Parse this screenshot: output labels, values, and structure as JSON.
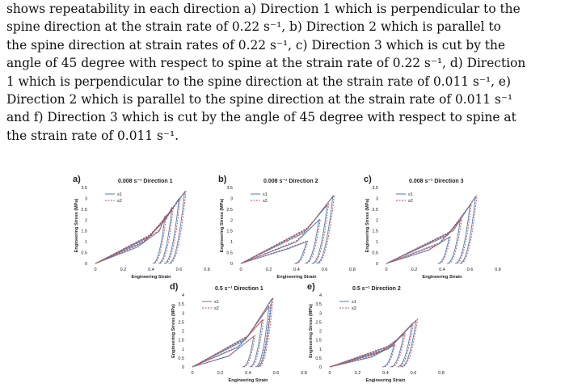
{
  "caption": {
    "lines": [
      "shows repeatability in each direction a) Direction 1 which is perpendicular to the",
      "spine direction at the strain rate of 0.22 s⁻¹, b) Direction 2 which is parallel to",
      "the spine direction at strain rates of 0.22 s⁻¹, c) Direction 3 which is cut by the",
      "angle of 45 degree with respect to spine at the strain rate of 0.22 s⁻¹, d) Direction",
      "1 which is perpendicular to the spine direction at the strain rate of 0.011 s⁻¹, e)",
      "Direction 2 which is parallel to the spine direction at the strain rate of 0.011 s⁻¹",
      "and f) Direction 3 which is cut by the angle of 45 degree with respect to spine at",
      "the strain rate of 0.011 s⁻¹."
    ]
  },
  "colors": {
    "s1": "#4a7ebb",
    "s2": "#c0504d"
  },
  "chart_data": [
    {
      "type": "line",
      "panel_label": "a)",
      "title": "0.008 s⁻¹ Direction 1",
      "xlabel": "Engineering Strain",
      "ylabel": "Engineering Stress (MPa)",
      "xticks": [
        "0",
        "0.2",
        "0.4",
        "0.6",
        "0.8"
      ],
      "yticks": [
        "0",
        "0.5",
        "1",
        "1.5",
        "2",
        "2.5",
        "3",
        "3.5"
      ],
      "xlim": [
        0,
        0.8
      ],
      "ylim": [
        0,
        3.5
      ],
      "series": [
        {
          "name": "s1",
          "style": "solid",
          "cycles": [
            {
              "x": [
                0,
                0.3,
                0.46,
                0.5
              ],
              "y": [
                0,
                0.75,
                1.5,
                2.2
              ]
            },
            {
              "x": [
                0,
                0.35,
                0.5,
                0.55
              ],
              "y": [
                0,
                1.0,
                2.0,
                2.6
              ]
            },
            {
              "x": [
                0,
                0.38,
                0.53,
                0.6
              ],
              "y": [
                0,
                1.2,
                2.3,
                3.0
              ]
            },
            {
              "x": [
                0,
                0.4,
                0.56,
                0.64
              ],
              "y": [
                0,
                1.3,
                2.6,
                3.3
              ]
            }
          ]
        },
        {
          "name": "s2",
          "style": "dashed",
          "cycles": [
            {
              "x": [
                0,
                0.3,
                0.46,
                0.51
              ],
              "y": [
                0,
                0.8,
                1.55,
                2.25
              ]
            },
            {
              "x": [
                0,
                0.35,
                0.51,
                0.56
              ],
              "y": [
                0,
                1.05,
                2.05,
                2.65
              ]
            },
            {
              "x": [
                0,
                0.38,
                0.54,
                0.61
              ],
              "y": [
                0,
                1.25,
                2.35,
                3.05
              ]
            },
            {
              "x": [
                0,
                0.4,
                0.57,
                0.65
              ],
              "y": [
                0,
                1.35,
                2.65,
                3.35
              ]
            }
          ]
        }
      ]
    },
    {
      "type": "line",
      "panel_label": "b)",
      "title": "0.008 s⁻¹ Direction 2",
      "xlabel": "Engineering Strain",
      "ylabel": "Engineering Stress (MPa)",
      "xticks": [
        "0",
        "0.2",
        "0.4",
        "0.6",
        "0.8"
      ],
      "yticks": [
        "0",
        "0.5",
        "1",
        "1.5",
        "2",
        "2.5",
        "3",
        "3.5"
      ],
      "xlim": [
        0,
        0.8
      ],
      "ylim": [
        0,
        3.5
      ],
      "series": [
        {
          "name": "s1",
          "style": "solid",
          "cycles": [
            {
              "x": [
                0,
                0.35,
                0.47
              ],
              "y": [
                0,
                0.7,
                1.0
              ]
            },
            {
              "x": [
                0,
                0.4,
                0.56
              ],
              "y": [
                0,
                1.0,
                2.0
              ]
            },
            {
              "x": [
                0,
                0.45,
                0.62
              ],
              "y": [
                0,
                1.4,
                2.7
              ]
            },
            {
              "x": [
                0,
                0.48,
                0.66
              ],
              "y": [
                0,
                1.6,
                3.1
              ]
            }
          ]
        },
        {
          "name": "s2",
          "style": "dashed",
          "cycles": [
            {
              "x": [
                0,
                0.34,
                0.48
              ],
              "y": [
                0,
                0.72,
                1.05
              ]
            },
            {
              "x": [
                0,
                0.4,
                0.57
              ],
              "y": [
                0,
                1.05,
                2.05
              ]
            },
            {
              "x": [
                0,
                0.45,
                0.63
              ],
              "y": [
                0,
                1.45,
                2.75
              ]
            },
            {
              "x": [
                0,
                0.48,
                0.67
              ],
              "y": [
                0,
                1.65,
                3.15
              ]
            }
          ]
        }
      ]
    },
    {
      "type": "line",
      "panel_label": "c)",
      "title": "0.008 s⁻¹ Direction 3",
      "xlabel": "Engineering Strain",
      "ylabel": "Engineering Stress (MPa)",
      "xticks": [
        "0",
        "0.2",
        "0.4",
        "0.6",
        "0.8"
      ],
      "yticks": [
        "0",
        "0.5",
        "1",
        "1.5",
        "2",
        "2.5",
        "3",
        "3.5"
      ],
      "xlim": [
        0,
        0.8
      ],
      "ylim": [
        0,
        3.5
      ],
      "series": [
        {
          "name": "s1",
          "style": "solid",
          "cycles": [
            {
              "x": [
                0,
                0.3,
                0.45
              ],
              "y": [
                0,
                0.6,
                1.2
              ]
            },
            {
              "x": [
                0,
                0.38,
                0.53
              ],
              "y": [
                0,
                0.9,
                2.0
              ]
            },
            {
              "x": [
                0,
                0.44,
                0.6
              ],
              "y": [
                0,
                1.3,
                2.7
              ]
            },
            {
              "x": [
                0,
                0.48,
                0.64
              ],
              "y": [
                0,
                1.5,
                3.1
              ]
            }
          ]
        },
        {
          "name": "s2",
          "style": "dashed",
          "cycles": [
            {
              "x": [
                0,
                0.3,
                0.46
              ],
              "y": [
                0,
                0.62,
                1.25
              ]
            },
            {
              "x": [
                0,
                0.38,
                0.54
              ],
              "y": [
                0,
                0.95,
                2.05
              ]
            },
            {
              "x": [
                0,
                0.44,
                0.61
              ],
              "y": [
                0,
                1.35,
                2.75
              ]
            },
            {
              "x": [
                0,
                0.48,
                0.65
              ],
              "y": [
                0,
                1.55,
                3.15
              ]
            }
          ]
        }
      ]
    },
    {
      "type": "line",
      "panel_label": "d)",
      "title": "0.5 s⁻¹ Direction 1",
      "xlabel": "Engineering Strain",
      "ylabel": "Engineering Stress (MPa)",
      "xticks": [
        "0",
        "0.2",
        "0.4",
        "0.6",
        "0.8"
      ],
      "yticks": [
        "0",
        "0.5",
        "1",
        "1.5",
        "2",
        "2.5",
        "3",
        "3.5",
        "4"
      ],
      "xlim": [
        0,
        0.8
      ],
      "ylim": [
        0,
        4
      ],
      "series": [
        {
          "name": "s1",
          "style": "solid",
          "cycles": [
            {
              "x": [
                0,
                0.26,
                0.44
              ],
              "y": [
                0,
                0.6,
                1.7
              ]
            },
            {
              "x": [
                0,
                0.33,
                0.5
              ],
              "y": [
                0,
                1.1,
                2.6
              ]
            },
            {
              "x": [
                0,
                0.38,
                0.55
              ],
              "y": [
                0,
                1.5,
                3.4
              ]
            },
            {
              "x": [
                0,
                0.4,
                0.57
              ],
              "y": [
                0,
                1.7,
                3.8
              ]
            }
          ]
        },
        {
          "name": "s2",
          "style": "dashed",
          "cycles": [
            {
              "x": [
                0,
                0.26,
                0.45
              ],
              "y": [
                0,
                0.62,
                1.75
              ]
            },
            {
              "x": [
                0,
                0.33,
                0.51
              ],
              "y": [
                0,
                1.15,
                2.65
              ]
            },
            {
              "x": [
                0,
                0.38,
                0.56
              ],
              "y": [
                0,
                1.55,
                3.45
              ]
            },
            {
              "x": [
                0,
                0.4,
                0.58
              ],
              "y": [
                0,
                1.75,
                3.85
              ]
            }
          ]
        }
      ]
    },
    {
      "type": "line",
      "panel_label": "e)",
      "title": "0.5 s⁻¹ Direction 2",
      "xlabel": "Engineering Strain",
      "ylabel": "Engineering Stress (MPa)",
      "xticks": [
        "0",
        "0.2",
        "0.4",
        "0.6",
        "0.8"
      ],
      "yticks": [
        "0",
        "0.5",
        "1",
        "1.5",
        "2",
        "2.5",
        "3",
        "3.5",
        "4"
      ],
      "xlim": [
        0,
        0.8
      ],
      "ylim": [
        0,
        4
      ],
      "series": [
        {
          "name": "s1",
          "style": "solid",
          "cycles": [
            {
              "x": [
                0,
                0.3,
                0.46
              ],
              "y": [
                0,
                0.55,
                1.2
              ]
            },
            {
              "x": [
                0,
                0.36,
                0.53
              ],
              "y": [
                0,
                0.8,
                1.8
              ]
            },
            {
              "x": [
                0,
                0.42,
                0.59
              ],
              "y": [
                0,
                1.0,
                2.4
              ]
            },
            {
              "x": [
                0,
                0.45,
                0.62
              ],
              "y": [
                0,
                1.2,
                2.6
              ]
            }
          ]
        },
        {
          "name": "s2",
          "style": "dashed",
          "cycles": [
            {
              "x": [
                0,
                0.3,
                0.47
              ],
              "y": [
                0,
                0.6,
                1.25
              ]
            },
            {
              "x": [
                0,
                0.36,
                0.54
              ],
              "y": [
                0,
                0.85,
                1.85
              ]
            },
            {
              "x": [
                0,
                0.42,
                0.6
              ],
              "y": [
                0,
                1.05,
                2.45
              ]
            },
            {
              "x": [
                0,
                0.45,
                0.63
              ],
              "y": [
                0,
                1.25,
                2.65
              ]
            }
          ]
        }
      ]
    }
  ]
}
